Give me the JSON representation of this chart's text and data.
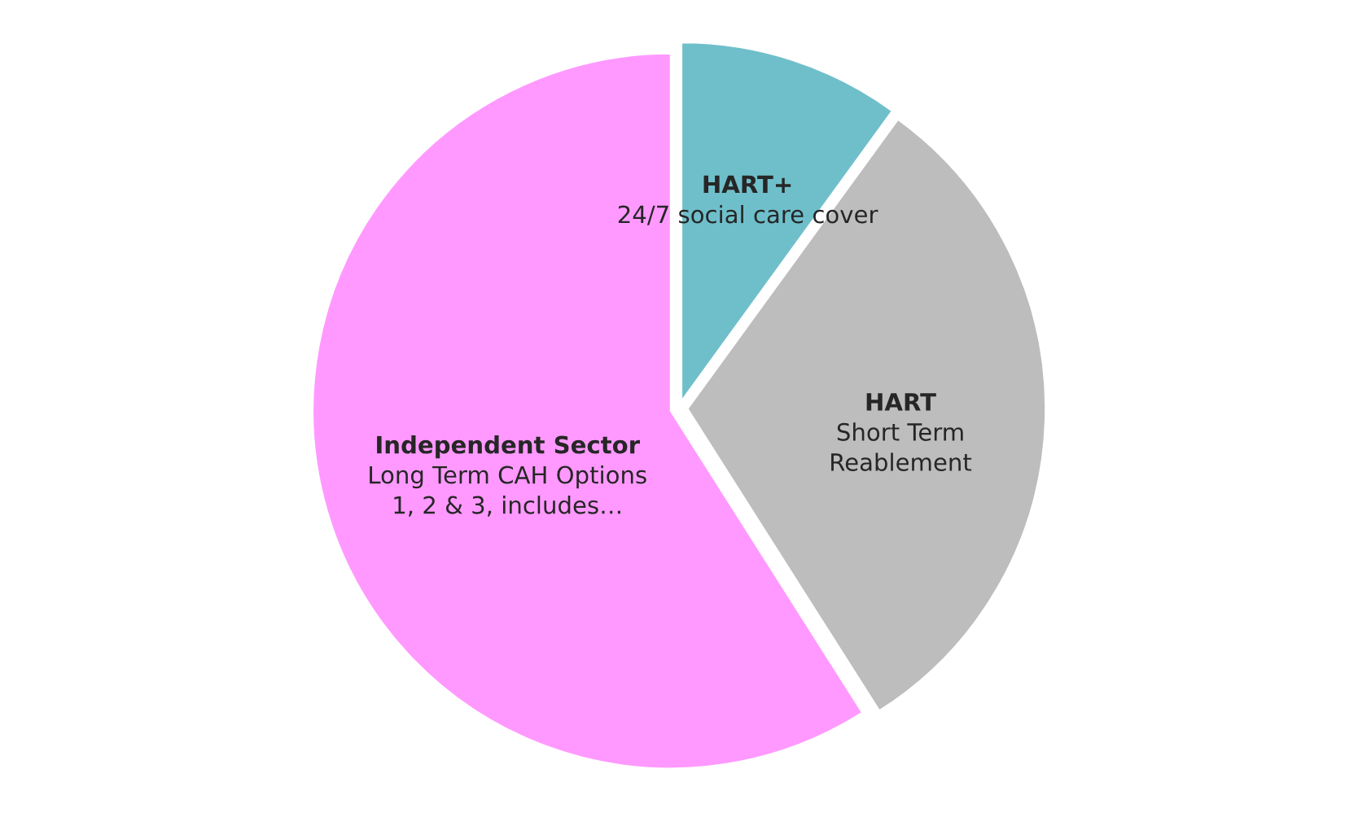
{
  "chart_data": {
    "type": "pie",
    "categories": [
      "HART+\n24/7 social care cover",
      "HART\nShort Term\nReablement",
      "Independent Sector\nLong Term CAH Options\n1, 2 & 3, includes…"
    ],
    "values": [
      10,
      31,
      59
    ],
    "colors": [
      "#6fbfcb",
      "#bdbdbd",
      "#ff99ff"
    ]
  }
}
